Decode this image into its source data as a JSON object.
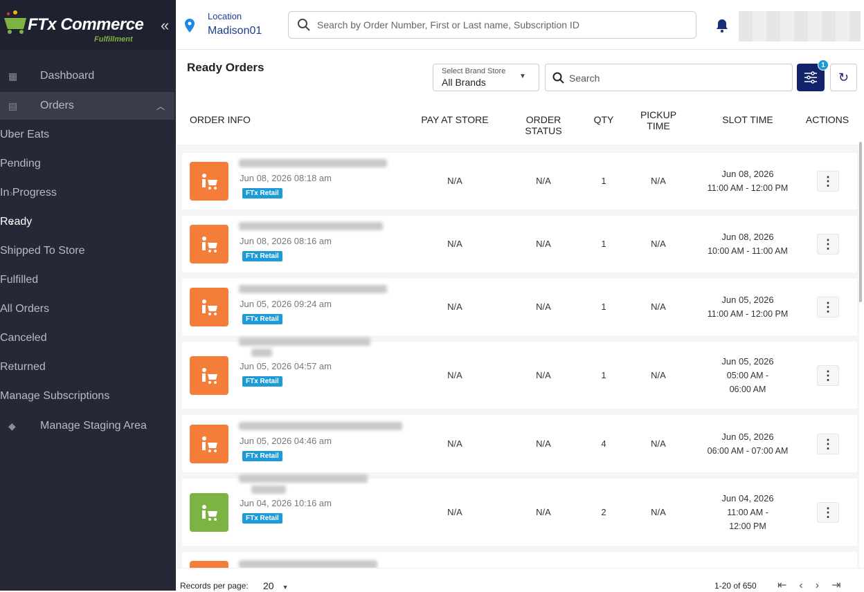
{
  "sidebar": {
    "brand": "FTx Commerce",
    "brand_sub": "Fulfillment",
    "nav": [
      {
        "label": "Dashboard"
      },
      {
        "label": "Orders"
      }
    ],
    "sub_nav": [
      "Uber Eats",
      "Pending",
      "In Progress",
      "Ready",
      "Shipped To Store",
      "Fulfilled",
      "All Orders",
      "Canceled",
      "Returned",
      "Manage Subscriptions"
    ],
    "active": "Ready",
    "extra": "Manage Staging Area"
  },
  "header": {
    "location_label": "Location",
    "location": "Madison01",
    "search_placeholder": "Search by Order Number, First or Last name, Subscription ID"
  },
  "toolbar": {
    "title": "Ready Orders",
    "brand_label": "Select Brand Store",
    "brand_value": "All Brands",
    "search_placeholder": "Search",
    "filter_badge": "1"
  },
  "table": {
    "columns": [
      "ORDER INFO",
      "PAY AT STORE",
      "ORDER STATUS",
      "QTY",
      "PICKUP TIME",
      "SLOT TIME",
      "ACTIONS"
    ],
    "rows": [
      {
        "date": "Jun 08, 2026 08:18 am",
        "tag": "FTx Retail",
        "pay": "N/A",
        "status": "N/A",
        "qty": 1,
        "pickup": "N/A",
        "slot_date": "Jun 08, 2026",
        "slot_time": "11:00 AM - 12:00 PM",
        "icon_color": "#f47d3a"
      },
      {
        "date": "Jun 08, 2026 08:16 am",
        "tag": "FTx Retail",
        "pay": "N/A",
        "status": "N/A",
        "qty": 1,
        "pickup": "N/A",
        "slot_date": "Jun 08, 2026",
        "slot_time": "10:00 AM - 11:00 AM",
        "icon_color": "#f47d3a"
      },
      {
        "date": "Jun 05, 2026 09:24 am",
        "tag": "FTx Retail",
        "pay": "N/A",
        "status": "N/A",
        "qty": 1,
        "pickup": "N/A",
        "slot_date": "Jun 05, 2026",
        "slot_time": "11:00 AM - 12:00 PM",
        "icon_color": "#f47d3a"
      },
      {
        "date": "Jun 05, 2026 04:57 am",
        "tag": "FTx Retail",
        "pay": "N/A",
        "status": "N/A",
        "qty": 1,
        "pickup": "N/A",
        "slot_date": "Jun 05, 2026",
        "slot_time": "05:00 AM - 06:00 AM",
        "icon_color": "#f47d3a"
      },
      {
        "date": "Jun 05, 2026 04:46 am",
        "tag": "FTx Retail",
        "pay": "N/A",
        "status": "N/A",
        "qty": 4,
        "pickup": "N/A",
        "slot_date": "Jun 05, 2026",
        "slot_time": "06:00 AM - 07:00 AM",
        "icon_color": "#f47d3a"
      },
      {
        "date": "Jun 04, 2026 10:16 am",
        "tag": "FTx Retail",
        "pay": "N/A",
        "status": "N/A",
        "qty": 2,
        "pickup": "N/A",
        "slot_date": "Jun 04, 2026",
        "slot_time": "11:00 AM - 12:00 PM",
        "icon_color": "#7cb342"
      }
    ]
  },
  "footer": {
    "per_page_label": "Records per page:",
    "per_page": "20",
    "range": "1-20 of 650"
  }
}
